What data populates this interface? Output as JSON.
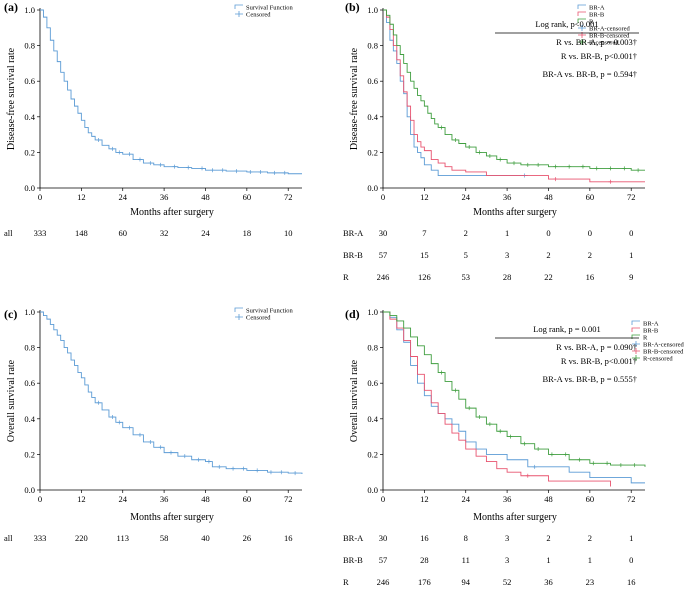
{
  "colors": {
    "survival": "#5b9bd5",
    "BR-A": "#5b9bd5",
    "BR-B": "#e8536f",
    "R": "#3f9e3f",
    "axis": "#000000"
  },
  "chart_data": [
    {
      "type": "line",
      "panel_label": "(a)",
      "title": "",
      "ylabel": "Disease-free survival rate",
      "xlabel": "Months after surgery",
      "xlim": [
        0,
        76
      ],
      "ylim": [
        0,
        1.0
      ],
      "xticks": [
        "0",
        "12",
        "24",
        "36",
        "48",
        "60",
        "72"
      ],
      "yticks": [
        "0.0",
        "0.2",
        "0.4",
        "0.6",
        "0.8",
        "1.0"
      ],
      "legend": [
        "Survival Function",
        "Censored"
      ],
      "legend_position": "top-right",
      "series": [
        {
          "name": "Survival Function",
          "color": "#5b9bd5",
          "x": [
            0,
            1,
            2,
            3,
            4,
            5,
            6,
            7,
            8,
            9,
            10,
            11,
            12,
            13,
            14,
            15,
            16,
            18,
            20,
            22,
            24,
            27,
            30,
            33,
            36,
            40,
            44,
            48,
            54,
            60,
            66,
            72,
            76
          ],
          "y": [
            1.0,
            0.96,
            0.9,
            0.83,
            0.77,
            0.71,
            0.65,
            0.6,
            0.55,
            0.5,
            0.46,
            0.42,
            0.38,
            0.34,
            0.31,
            0.29,
            0.27,
            0.24,
            0.22,
            0.2,
            0.19,
            0.16,
            0.14,
            0.13,
            0.12,
            0.115,
            0.11,
            0.1,
            0.095,
            0.09,
            0.085,
            0.08,
            0.08
          ],
          "censored_x": [
            17,
            21,
            23,
            26,
            29,
            32,
            35,
            39,
            43,
            47,
            50,
            53,
            57,
            61,
            64,
            68,
            71
          ]
        }
      ],
      "risk_table": {
        "x": [
          "0",
          "12",
          "24",
          "36",
          "48",
          "60",
          "72"
        ],
        "rows": [
          {
            "label": "all",
            "values": [
              "333",
              "148",
              "60",
              "32",
              "24",
              "18",
              "10"
            ]
          }
        ]
      }
    },
    {
      "type": "line",
      "panel_label": "(b)",
      "title": "",
      "ylabel": "Disease-free survival rate",
      "xlabel": "Months after surgery",
      "xlim": [
        0,
        76
      ],
      "ylim": [
        0,
        1.0
      ],
      "xticks": [
        "0",
        "12",
        "24",
        "36",
        "48",
        "60",
        "72"
      ],
      "yticks": [
        "0.0",
        "0.2",
        "0.4",
        "0.6",
        "0.8",
        "1.0"
      ],
      "legend": [
        "BR-A",
        "BR-B",
        "R",
        "BR-A-censored",
        "BR-B-censored",
        "R-censored"
      ],
      "legend_position": "top-right",
      "stats": [
        "Log rank, p<0.001",
        "R vs. BR-A, p = 0.003†",
        "R vs. BR-B, p<0.001†",
        "BR-A vs. BR-B, p = 0.594†"
      ],
      "series": [
        {
          "name": "BR-A",
          "color": "#5b9bd5",
          "x": [
            0,
            1,
            2,
            3,
            4,
            5,
            6,
            7,
            8,
            9,
            10,
            11,
            12,
            14,
            16,
            18,
            24,
            30,
            36,
            40,
            42
          ],
          "y": [
            1.0,
            0.93,
            0.83,
            0.77,
            0.7,
            0.6,
            0.53,
            0.4,
            0.3,
            0.23,
            0.2,
            0.17,
            0.13,
            0.1,
            0.07,
            0.07,
            0.07,
            0.07,
            0.07,
            0.07,
            0.07
          ],
          "censored_x": [
            41
          ]
        },
        {
          "name": "BR-B",
          "color": "#e8536f",
          "x": [
            0,
            1,
            2,
            3,
            4,
            5,
            6,
            7,
            8,
            9,
            10,
            11,
            12,
            14,
            16,
            18,
            20,
            24,
            30,
            36,
            48,
            60,
            76
          ],
          "y": [
            1.0,
            0.96,
            0.89,
            0.8,
            0.72,
            0.63,
            0.54,
            0.46,
            0.38,
            0.3,
            0.26,
            0.23,
            0.21,
            0.16,
            0.14,
            0.12,
            0.1,
            0.09,
            0.07,
            0.07,
            0.05,
            0.035,
            0.035
          ],
          "censored_x": [
            50,
            66
          ]
        },
        {
          "name": "R",
          "color": "#3f9e3f",
          "x": [
            0,
            1,
            2,
            3,
            4,
            5,
            6,
            7,
            8,
            9,
            10,
            11,
            12,
            13,
            14,
            15,
            16,
            18,
            20,
            22,
            24,
            27,
            30,
            33,
            36,
            40,
            48,
            60,
            72,
            76
          ],
          "y": [
            1.0,
            0.97,
            0.92,
            0.86,
            0.8,
            0.75,
            0.7,
            0.65,
            0.6,
            0.56,
            0.52,
            0.49,
            0.46,
            0.42,
            0.39,
            0.36,
            0.34,
            0.3,
            0.27,
            0.25,
            0.23,
            0.2,
            0.18,
            0.16,
            0.14,
            0.13,
            0.12,
            0.11,
            0.1,
            0.1
          ],
          "censored_x": [
            17,
            21,
            25,
            28,
            31,
            34,
            38,
            42,
            45,
            50,
            54,
            58,
            62,
            66,
            70,
            74
          ]
        }
      ],
      "risk_table": {
        "x": [
          "0",
          "12",
          "24",
          "36",
          "48",
          "60",
          "72"
        ],
        "rows": [
          {
            "label": "BR-A",
            "values": [
              "30",
              "7",
              "2",
              "1",
              "0",
              "0",
              "0"
            ]
          },
          {
            "label": "BR-B",
            "values": [
              "57",
              "15",
              "5",
              "3",
              "2",
              "2",
              "1"
            ]
          },
          {
            "label": "R",
            "values": [
              "246",
              "126",
              "53",
              "28",
              "22",
              "16",
              "9"
            ]
          }
        ]
      }
    },
    {
      "type": "line",
      "panel_label": "(c)",
      "title": "",
      "ylabel": "Overall survival rate",
      "xlabel": "Months after surgery",
      "xlim": [
        0,
        76
      ],
      "ylim": [
        0,
        1.0
      ],
      "xticks": [
        "0",
        "12",
        "24",
        "36",
        "48",
        "60",
        "72"
      ],
      "yticks": [
        "0.0",
        "0.2",
        "0.4",
        "0.6",
        "0.8",
        "1.0"
      ],
      "legend": [
        "Survival Function",
        "Censored"
      ],
      "legend_position": "top-right",
      "series": [
        {
          "name": "Survival Function",
          "color": "#5b9bd5",
          "x": [
            0,
            1,
            2,
            3,
            4,
            5,
            6,
            7,
            8,
            9,
            10,
            11,
            12,
            13,
            14,
            15,
            16,
            18,
            20,
            22,
            24,
            27,
            30,
            33,
            36,
            40,
            44,
            48,
            50,
            54,
            60,
            66,
            72,
            76
          ],
          "y": [
            1.0,
            0.98,
            0.96,
            0.93,
            0.9,
            0.87,
            0.84,
            0.8,
            0.77,
            0.73,
            0.7,
            0.66,
            0.63,
            0.59,
            0.55,
            0.52,
            0.49,
            0.45,
            0.41,
            0.38,
            0.35,
            0.31,
            0.27,
            0.24,
            0.21,
            0.19,
            0.17,
            0.16,
            0.13,
            0.12,
            0.11,
            0.1,
            0.095,
            0.09
          ],
          "censored_x": [
            17,
            21,
            23,
            26,
            29,
            32,
            35,
            38,
            42,
            46,
            49,
            52,
            56,
            59,
            63,
            67,
            70,
            74
          ]
        }
      ],
      "risk_table": {
        "x": [
          "0",
          "12",
          "24",
          "36",
          "48",
          "60",
          "72"
        ],
        "rows": [
          {
            "label": "all",
            "values": [
              "333",
              "220",
              "113",
              "58",
              "40",
              "26",
              "16"
            ]
          }
        ]
      }
    },
    {
      "type": "line",
      "panel_label": "(d)",
      "title": "",
      "ylabel": "Overall survival rate",
      "xlabel": "Months after surgery",
      "xlim": [
        0,
        76
      ],
      "ylim": [
        0,
        1.0
      ],
      "xticks": [
        "0",
        "12",
        "24",
        "36",
        "48",
        "60",
        "72"
      ],
      "yticks": [
        "0.0",
        "0.2",
        "0.4",
        "0.6",
        "0.8",
        "1.0"
      ],
      "legend": [
        "BR-A",
        "BR-B",
        "R",
        "BR-A-censored",
        "BR-B-censored",
        "R-censored"
      ],
      "legend_position": "top-right",
      "stats": [
        "Log rank, p = 0.001",
        "R vs. BR-A, p = 0.090†",
        "R vs. BR-B, p<0.001†",
        "BR-A vs. BR-B, p = 0.555†"
      ],
      "series": [
        {
          "name": "BR-A",
          "color": "#5b9bd5",
          "x": [
            0,
            2,
            4,
            6,
            8,
            10,
            12,
            14,
            16,
            18,
            20,
            22,
            24,
            27,
            30,
            36,
            42,
            48,
            54,
            60,
            66,
            72,
            76
          ],
          "y": [
            1.0,
            0.97,
            0.9,
            0.83,
            0.7,
            0.6,
            0.53,
            0.47,
            0.43,
            0.4,
            0.37,
            0.33,
            0.27,
            0.23,
            0.2,
            0.17,
            0.13,
            0.13,
            0.1,
            0.07,
            0.07,
            0.04,
            0.04
          ],
          "censored_x": [
            44
          ]
        },
        {
          "name": "BR-B",
          "color": "#e8536f",
          "x": [
            0,
            2,
            4,
            6,
            8,
            10,
            12,
            14,
            16,
            18,
            20,
            22,
            24,
            27,
            30,
            33,
            36,
            40,
            44,
            48,
            54,
            60,
            66
          ],
          "y": [
            1.0,
            0.96,
            0.91,
            0.84,
            0.75,
            0.65,
            0.56,
            0.49,
            0.43,
            0.37,
            0.32,
            0.28,
            0.23,
            0.19,
            0.16,
            0.12,
            0.1,
            0.08,
            0.08,
            0.05,
            0.05,
            0.05,
            0.02
          ],
          "censored_x": [
            42
          ]
        },
        {
          "name": "R",
          "color": "#3f9e3f",
          "x": [
            0,
            2,
            4,
            6,
            8,
            10,
            12,
            14,
            16,
            18,
            20,
            22,
            24,
            27,
            30,
            33,
            36,
            40,
            44,
            48,
            54,
            60,
            66,
            72,
            76
          ],
          "y": [
            1.0,
            0.98,
            0.95,
            0.91,
            0.86,
            0.81,
            0.76,
            0.71,
            0.66,
            0.61,
            0.56,
            0.51,
            0.46,
            0.41,
            0.37,
            0.33,
            0.3,
            0.26,
            0.23,
            0.2,
            0.17,
            0.15,
            0.14,
            0.14,
            0.13
          ],
          "censored_x": [
            17,
            21,
            25,
            28,
            31,
            34,
            37,
            41,
            45,
            49,
            53,
            57,
            61,
            65,
            69,
            73
          ]
        }
      ],
      "risk_table": {
        "x": [
          "0",
          "12",
          "24",
          "36",
          "48",
          "60",
          "72"
        ],
        "rows": [
          {
            "label": "BR-A",
            "values": [
              "30",
              "16",
              "8",
              "3",
              "2",
              "2",
              "1"
            ]
          },
          {
            "label": "BR-B",
            "values": [
              "57",
              "28",
              "11",
              "3",
              "1",
              "1",
              "0"
            ]
          },
          {
            "label": "R",
            "values": [
              "246",
              "176",
              "94",
              "52",
              "36",
              "23",
              "16"
            ]
          }
        ]
      }
    }
  ]
}
